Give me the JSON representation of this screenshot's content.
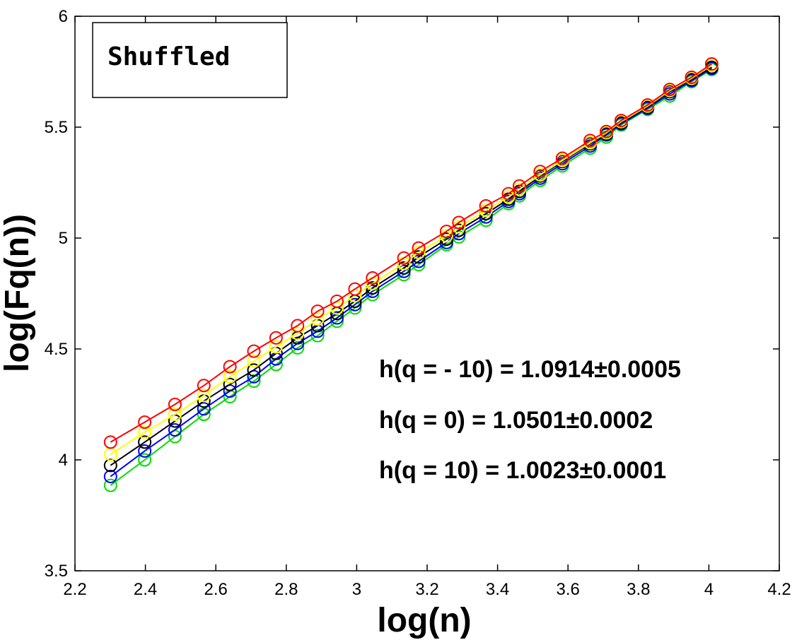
{
  "chart_data": {
    "type": "line",
    "title": "",
    "xlabel": "log(n)",
    "ylabel": "log(Fq(n))",
    "xlim": [
      2.2,
      4.2
    ],
    "ylim": [
      3.5,
      6
    ],
    "xticks": [
      "2.2",
      "2.4",
      "2.6",
      "2.8",
      "3",
      "3.2",
      "3.4",
      "3.6",
      "3.8",
      "4",
      "4.2"
    ],
    "yticks": [
      "3.5",
      "4",
      "4.5",
      "5",
      "5.5",
      "6"
    ],
    "grid": false,
    "marker": "open-circle",
    "legend_box": {
      "text": "Shuffled",
      "placement": "top-left"
    },
    "annotations": [
      {
        "text": "h(q = - 10) = 1.0914±0.0005"
      },
      {
        "text": "h(q = 0) = 1.0501±0.0002"
      },
      {
        "text": "h(q = 10) = 1.0023±0.0001"
      }
    ],
    "x": [
      2.301,
      2.398,
      2.484,
      2.566,
      2.64,
      2.708,
      2.771,
      2.832,
      2.889,
      2.944,
      2.995,
      3.045,
      3.134,
      3.176,
      3.255,
      3.29,
      3.367,
      3.431,
      3.462,
      3.521,
      3.584,
      3.663,
      3.709,
      3.751,
      3.826,
      3.889,
      3.951,
      4.008
    ],
    "series": [
      {
        "name": "red",
        "color": "#ff0000",
        "values": [
          4.08,
          4.17,
          4.25,
          4.335,
          4.42,
          4.49,
          4.55,
          4.605,
          4.67,
          4.715,
          4.77,
          4.82,
          4.91,
          4.955,
          5.03,
          5.07,
          5.145,
          5.2,
          5.235,
          5.3,
          5.36,
          5.44,
          5.48,
          5.53,
          5.6,
          5.67,
          5.725,
          5.785
        ]
      },
      {
        "name": "yellow",
        "color": "#ffff00",
        "values": [
          4.025,
          4.125,
          4.205,
          4.29,
          4.375,
          4.445,
          4.51,
          4.57,
          4.635,
          4.685,
          4.74,
          4.795,
          4.885,
          4.935,
          5.01,
          5.05,
          5.125,
          5.185,
          5.22,
          5.285,
          5.35,
          5.43,
          5.475,
          5.525,
          5.595,
          5.665,
          5.72,
          5.78
        ]
      },
      {
        "name": "black",
        "color": "#000000",
        "values": [
          3.975,
          4.08,
          4.175,
          4.265,
          4.34,
          4.405,
          4.48,
          4.55,
          4.605,
          4.66,
          4.715,
          4.775,
          4.865,
          4.915,
          4.995,
          5.035,
          5.11,
          5.175,
          5.21,
          5.28,
          5.345,
          5.425,
          5.47,
          5.52,
          5.59,
          5.66,
          5.715,
          5.77
        ]
      },
      {
        "name": "blue",
        "color": "#0000ff",
        "values": [
          3.925,
          4.04,
          4.135,
          4.23,
          4.31,
          4.375,
          4.455,
          4.525,
          4.58,
          4.64,
          4.7,
          4.76,
          4.85,
          4.895,
          4.98,
          5.02,
          5.095,
          5.165,
          5.2,
          5.27,
          5.335,
          5.415,
          5.465,
          5.515,
          5.585,
          5.65,
          5.71,
          5.765
        ]
      },
      {
        "name": "green",
        "color": "#00dd00",
        "values": [
          3.885,
          4.0,
          4.105,
          4.205,
          4.285,
          4.355,
          4.43,
          4.505,
          4.56,
          4.625,
          4.685,
          4.745,
          4.835,
          4.88,
          4.97,
          5.005,
          5.08,
          5.155,
          5.19,
          5.26,
          5.325,
          5.405,
          5.455,
          5.51,
          5.58,
          5.64,
          5.705,
          5.76
        ]
      }
    ]
  }
}
